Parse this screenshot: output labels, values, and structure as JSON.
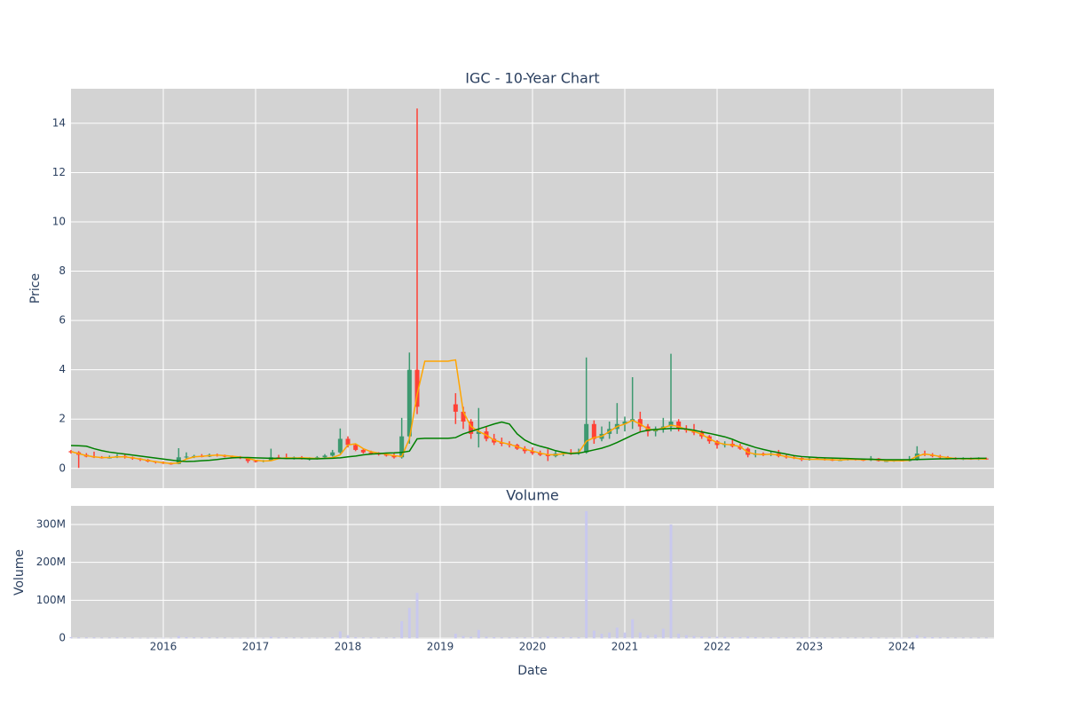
{
  "chart_data": [
    {
      "type": "candlestick",
      "title": "IGC - 10-Year Chart",
      "y_label": "Price",
      "x": [
        "2015-01",
        "2015-02",
        "2015-03",
        "2015-04",
        "2015-05",
        "2015-06",
        "2015-07",
        "2015-08",
        "2015-09",
        "2015-10",
        "2015-11",
        "2015-12",
        "2016-01",
        "2016-02",
        "2016-03",
        "2016-04",
        "2016-05",
        "2016-06",
        "2016-07",
        "2016-08",
        "2016-09",
        "2016-10",
        "2016-11",
        "2016-12",
        "2017-01",
        "2017-02",
        "2017-03",
        "2017-04",
        "2017-05",
        "2017-06",
        "2017-07",
        "2017-08",
        "2017-09",
        "2017-10",
        "2017-11",
        "2017-12",
        "2018-01",
        "2018-02",
        "2018-03",
        "2018-04",
        "2018-05",
        "2018-06",
        "2018-07",
        "2018-08",
        "2018-09",
        "2018-10",
        "2018-11",
        "2018-12",
        "2019-01",
        "2019-02",
        "2019-03",
        "2019-04",
        "2019-05",
        "2019-06",
        "2019-07",
        "2019-08",
        "2019-09",
        "2019-10",
        "2019-11",
        "2019-12",
        "2020-01",
        "2020-02",
        "2020-03",
        "2020-04",
        "2020-05",
        "2020-06",
        "2020-07",
        "2020-08",
        "2020-09",
        "2020-10",
        "2020-11",
        "2020-12",
        "2021-01",
        "2021-02",
        "2021-03",
        "2021-04",
        "2021-05",
        "2021-06",
        "2021-07",
        "2021-08",
        "2021-09",
        "2021-10",
        "2021-11",
        "2021-12",
        "2022-01",
        "2022-02",
        "2022-03",
        "2022-04",
        "2022-05",
        "2022-06",
        "2022-07",
        "2022-08",
        "2022-09",
        "2022-10",
        "2022-11",
        "2022-12",
        "2023-01",
        "2023-02",
        "2023-03",
        "2023-04",
        "2023-05",
        "2023-06",
        "2023-07",
        "2023-08",
        "2023-09",
        "2023-10",
        "2023-11",
        "2023-12",
        "2024-01",
        "2024-02",
        "2024-03",
        "2024-04",
        "2024-05",
        "2024-06",
        "2024-07",
        "2024-08",
        "2024-09",
        "2024-10",
        "2024-11",
        "2024-12"
      ],
      "open": [
        0.7,
        0.65,
        0.55,
        0.48,
        0.45,
        0.42,
        0.44,
        0.5,
        0.45,
        0.4,
        0.35,
        0.28,
        0.25,
        0.2,
        0.18,
        0.45,
        0.48,
        0.5,
        0.48,
        0.55,
        0.52,
        0.48,
        0.45,
        0.42,
        0.3,
        0.28,
        0.32,
        0.45,
        0.42,
        0.4,
        0.45,
        0.38,
        0.4,
        0.45,
        0.52,
        0.65,
        1.2,
        0.95,
        0.75,
        0.65,
        0.6,
        0.58,
        0.52,
        0.45,
        1.3,
        4.0,
        null,
        null,
        null,
        null,
        2.6,
        2.3,
        1.9,
        1.4,
        1.5,
        1.2,
        1.05,
        1.0,
        0.95,
        0.8,
        0.7,
        0.62,
        0.55,
        0.5,
        0.6,
        0.62,
        0.6,
        0.65,
        1.8,
        1.2,
        1.4,
        1.6,
        1.8,
        1.9,
        2.0,
        1.7,
        1.5,
        1.6,
        1.7,
        1.9,
        1.6,
        1.55,
        1.45,
        1.3,
        1.1,
        0.95,
        1.0,
        0.9,
        0.8,
        0.55,
        0.6,
        0.55,
        0.6,
        0.5,
        0.45,
        0.42,
        0.35,
        0.4,
        0.38,
        0.35,
        0.33,
        0.34,
        0.38,
        0.35,
        0.33,
        0.4,
        0.3,
        0.3,
        0.32,
        0.3,
        0.35,
        0.6,
        0.55,
        0.5,
        0.45,
        0.4,
        0.38,
        0.4,
        0.38,
        0.4
      ],
      "high": [
        0.75,
        0.7,
        0.62,
        0.68,
        0.5,
        0.52,
        0.58,
        0.55,
        0.48,
        0.42,
        0.38,
        0.3,
        0.28,
        0.24,
        0.82,
        0.65,
        0.55,
        0.58,
        0.6,
        0.6,
        0.56,
        0.52,
        0.5,
        0.45,
        0.35,
        0.34,
        0.8,
        0.55,
        0.6,
        0.48,
        0.5,
        0.45,
        0.5,
        0.58,
        0.75,
        1.62,
        1.3,
        1.0,
        0.8,
        0.72,
        0.66,
        0.62,
        0.6,
        2.05,
        4.7,
        14.6,
        null,
        null,
        null,
        null,
        3.05,
        2.5,
        2.0,
        2.45,
        1.7,
        1.4,
        1.25,
        1.1,
        1.0,
        0.9,
        0.85,
        0.72,
        0.78,
        0.7,
        0.68,
        0.78,
        0.8,
        4.5,
        1.95,
        1.7,
        1.9,
        2.65,
        2.1,
        3.7,
        2.3,
        1.8,
        1.7,
        2.05,
        4.65,
        2.0,
        1.75,
        1.8,
        1.55,
        1.35,
        1.15,
        1.1,
        1.15,
        1.0,
        0.85,
        0.75,
        0.65,
        0.7,
        0.75,
        0.55,
        0.5,
        0.45,
        0.45,
        0.45,
        0.42,
        0.4,
        0.38,
        0.42,
        0.4,
        0.38,
        0.5,
        0.42,
        0.35,
        0.34,
        0.35,
        0.5,
        0.9,
        0.72,
        0.62,
        0.55,
        0.5,
        0.45,
        0.45,
        0.44,
        0.45,
        0.44
      ],
      "low": [
        0.6,
        0.02,
        0.45,
        0.42,
        0.4,
        0.4,
        0.42,
        0.4,
        0.35,
        0.3,
        0.25,
        0.2,
        0.18,
        0.15,
        0.17,
        0.38,
        0.42,
        0.45,
        0.46,
        0.48,
        0.45,
        0.42,
        0.38,
        0.22,
        0.24,
        0.25,
        0.3,
        0.4,
        0.38,
        0.36,
        0.36,
        0.32,
        0.36,
        0.42,
        0.48,
        0.6,
        0.85,
        0.7,
        0.6,
        0.55,
        0.52,
        0.48,
        0.4,
        0.4,
        1.0,
        2.2,
        null,
        null,
        null,
        null,
        1.8,
        1.6,
        1.2,
        0.85,
        1.1,
        0.95,
        0.9,
        0.85,
        0.75,
        0.6,
        0.55,
        0.5,
        0.3,
        0.45,
        0.5,
        0.55,
        0.55,
        0.6,
        1.0,
        1.1,
        1.2,
        1.4,
        1.5,
        1.6,
        1.5,
        1.3,
        1.3,
        1.45,
        1.5,
        1.5,
        1.45,
        1.35,
        1.2,
        1.0,
        0.8,
        0.85,
        0.85,
        0.75,
        0.45,
        0.45,
        0.5,
        0.5,
        0.45,
        0.4,
        0.38,
        0.3,
        0.32,
        0.35,
        0.32,
        0.3,
        0.3,
        0.32,
        0.32,
        0.3,
        0.3,
        0.28,
        0.26,
        0.27,
        0.28,
        0.28,
        0.32,
        0.5,
        0.45,
        0.4,
        0.38,
        0.35,
        0.34,
        0.35,
        0.34,
        0.35
      ],
      "close": [
        0.65,
        0.55,
        0.48,
        0.45,
        0.42,
        0.44,
        0.5,
        0.45,
        0.4,
        0.35,
        0.28,
        0.25,
        0.2,
        0.18,
        0.45,
        0.48,
        0.5,
        0.48,
        0.55,
        0.52,
        0.48,
        0.45,
        0.42,
        0.3,
        0.28,
        0.32,
        0.45,
        0.42,
        0.4,
        0.45,
        0.38,
        0.4,
        0.45,
        0.52,
        0.65,
        1.2,
        0.95,
        0.75,
        0.65,
        0.6,
        0.58,
        0.52,
        0.45,
        1.3,
        4.0,
        2.5,
        null,
        null,
        null,
        null,
        2.3,
        1.9,
        1.4,
        1.5,
        1.2,
        1.05,
        1.0,
        0.95,
        0.8,
        0.7,
        0.62,
        0.55,
        0.5,
        0.6,
        0.62,
        0.6,
        0.65,
        1.8,
        1.2,
        1.4,
        1.6,
        1.8,
        1.9,
        2.0,
        1.7,
        1.5,
        1.6,
        1.7,
        1.9,
        1.6,
        1.55,
        1.45,
        1.3,
        1.1,
        0.95,
        1.0,
        0.9,
        0.8,
        0.55,
        0.6,
        0.55,
        0.6,
        0.5,
        0.45,
        0.42,
        0.35,
        0.4,
        0.38,
        0.35,
        0.33,
        0.34,
        0.38,
        0.35,
        0.33,
        0.4,
        0.3,
        0.3,
        0.32,
        0.3,
        0.35,
        0.6,
        0.55,
        0.5,
        0.45,
        0.4,
        0.38,
        0.4,
        0.38,
        0.4,
        0.38
      ],
      "increasing_color": "#3d9970",
      "decreasing_color": "#ff4136",
      "series": [
        {
          "color": "#ffa500",
          "values": [
            0.68,
            0.6,
            0.52,
            0.47,
            0.44,
            0.44,
            0.47,
            0.47,
            0.43,
            0.38,
            0.32,
            0.27,
            0.23,
            0.2,
            0.22,
            0.38,
            0.47,
            0.49,
            0.52,
            0.54,
            0.52,
            0.49,
            0.46,
            0.4,
            0.33,
            0.3,
            0.31,
            0.4,
            0.43,
            0.42,
            0.43,
            0.42,
            0.4,
            0.41,
            0.44,
            0.55,
            0.95,
            1.0,
            0.8,
            0.68,
            0.62,
            0.57,
            0.52,
            0.48,
            1.2,
            3.0,
            4.35,
            4.35,
            4.35,
            4.35,
            4.4,
            2.3,
            1.7,
            1.5,
            1.35,
            1.15,
            1.05,
            0.98,
            0.88,
            0.78,
            0.7,
            0.62,
            0.56,
            0.55,
            0.6,
            0.62,
            0.64,
            1.1,
            1.25,
            1.3,
            1.5,
            1.7,
            1.8,
            1.95,
            1.8,
            1.6,
            1.55,
            1.65,
            1.75,
            1.7,
            1.58,
            1.5,
            1.38,
            1.2,
            1.05,
            0.98,
            0.95,
            0.88,
            0.65,
            0.58,
            0.56,
            0.58,
            0.54,
            0.48,
            0.43,
            0.38,
            0.37,
            0.37,
            0.36,
            0.35,
            0.34,
            0.36,
            0.36,
            0.35,
            0.37,
            0.34,
            0.31,
            0.31,
            0.31,
            0.33,
            0.5,
            0.58,
            0.54,
            0.48,
            0.44,
            0.4,
            0.39,
            0.39,
            0.39,
            0.38
          ]
        },
        {
          "color": "#008000",
          "values": [
            0.93,
            0.92,
            0.9,
            0.8,
            0.72,
            0.66,
            0.62,
            0.58,
            0.54,
            0.5,
            0.46,
            0.42,
            0.38,
            0.34,
            0.3,
            0.28,
            0.29,
            0.31,
            0.33,
            0.36,
            0.4,
            0.43,
            0.44,
            0.44,
            0.43,
            0.42,
            0.41,
            0.41,
            0.4,
            0.4,
            0.4,
            0.39,
            0.39,
            0.4,
            0.41,
            0.43,
            0.47,
            0.5,
            0.55,
            0.58,
            0.6,
            0.62,
            0.63,
            0.65,
            0.7,
            1.2,
            1.22,
            1.22,
            1.22,
            1.22,
            1.25,
            1.4,
            1.5,
            1.6,
            1.7,
            1.8,
            1.88,
            1.8,
            1.4,
            1.15,
            1.0,
            0.9,
            0.82,
            0.72,
            0.65,
            0.6,
            0.62,
            0.68,
            0.75,
            0.82,
            0.92,
            1.05,
            1.2,
            1.35,
            1.48,
            1.55,
            1.58,
            1.6,
            1.62,
            1.62,
            1.6,
            1.55,
            1.48,
            1.42,
            1.35,
            1.28,
            1.18,
            1.05,
            0.95,
            0.85,
            0.77,
            0.7,
            0.64,
            0.58,
            0.52,
            0.48,
            0.46,
            0.44,
            0.43,
            0.42,
            0.41,
            0.4,
            0.39,
            0.38,
            0.37,
            0.36,
            0.35,
            0.35,
            0.35,
            0.35,
            0.36,
            0.37,
            0.38,
            0.39,
            0.39,
            0.4,
            0.4,
            0.4,
            0.41,
            0.41
          ]
        }
      ],
      "xlim": [
        "2015-01",
        "2025-01"
      ],
      "xticks": [
        "2016-01",
        "2017-01",
        "2018-01",
        "2019-01",
        "2020-01",
        "2021-01",
        "2022-01",
        "2023-01",
        "2024-01"
      ],
      "ylim": [
        -0.8,
        15.4
      ],
      "yticks": [
        0,
        2,
        4,
        6,
        8,
        10,
        12,
        14
      ],
      "grid": true,
      "background": "#d3d3d3"
    },
    {
      "type": "bar",
      "title": "Volume",
      "y_label": "Volume",
      "x_label": "Date",
      "color": "#c8c8ee",
      "x": [
        "2015-01",
        "2015-02",
        "2015-03",
        "2015-04",
        "2015-05",
        "2015-06",
        "2015-07",
        "2015-08",
        "2015-09",
        "2015-10",
        "2015-11",
        "2015-12",
        "2016-01",
        "2016-02",
        "2016-03",
        "2016-04",
        "2016-05",
        "2016-06",
        "2016-07",
        "2016-08",
        "2016-09",
        "2016-10",
        "2016-11",
        "2016-12",
        "2017-01",
        "2017-02",
        "2017-03",
        "2017-04",
        "2017-05",
        "2017-06",
        "2017-07",
        "2017-08",
        "2017-09",
        "2017-10",
        "2017-11",
        "2017-12",
        "2018-01",
        "2018-02",
        "2018-03",
        "2018-04",
        "2018-05",
        "2018-06",
        "2018-07",
        "2018-08",
        "2018-09",
        "2018-10",
        "2018-11",
        "2018-12",
        "2019-01",
        "2019-02",
        "2019-03",
        "2019-04",
        "2019-05",
        "2019-06",
        "2019-07",
        "2019-08",
        "2019-09",
        "2019-10",
        "2019-11",
        "2019-12",
        "2020-01",
        "2020-02",
        "2020-03",
        "2020-04",
        "2020-05",
        "2020-06",
        "2020-07",
        "2020-08",
        "2020-09",
        "2020-10",
        "2020-11",
        "2020-12",
        "2021-01",
        "2021-02",
        "2021-03",
        "2021-04",
        "2021-05",
        "2021-06",
        "2021-07",
        "2021-08",
        "2021-09",
        "2021-10",
        "2021-11",
        "2021-12",
        "2022-01",
        "2022-02",
        "2022-03",
        "2022-04",
        "2022-05",
        "2022-06",
        "2022-07",
        "2022-08",
        "2022-09",
        "2022-10",
        "2022-11",
        "2022-12",
        "2023-01",
        "2023-02",
        "2023-03",
        "2023-04",
        "2023-05",
        "2023-06",
        "2023-07",
        "2023-08",
        "2023-09",
        "2023-10",
        "2023-11",
        "2023-12",
        "2024-01",
        "2024-02",
        "2024-03",
        "2024-04",
        "2024-05",
        "2024-06",
        "2024-07",
        "2024-08",
        "2024-09",
        "2024-10",
        "2024-11",
        "2024-12"
      ],
      "values": [
        3000000,
        2000000,
        2000000,
        2000000,
        1500000,
        1500000,
        2000000,
        1500000,
        1500000,
        1000000,
        1000000,
        1000000,
        1000000,
        1000000,
        6000000,
        3000000,
        2000000,
        2000000,
        2000000,
        1500000,
        1500000,
        1000000,
        1000000,
        1000000,
        1000000,
        1000000,
        4000000,
        2000000,
        2000000,
        1500000,
        1500000,
        1000000,
        1000000,
        1500000,
        3000000,
        18000000,
        8000000,
        3000000,
        2000000,
        2000000,
        1500000,
        1500000,
        2000000,
        45000000,
        80000000,
        120000000,
        null,
        null,
        null,
        null,
        12000000,
        6000000,
        4000000,
        22000000,
        4000000,
        3000000,
        2000000,
        2000000,
        2000000,
        2000000,
        2000000,
        2000000,
        5000000,
        3000000,
        3000000,
        3000000,
        3000000,
        335000000,
        20000000,
        12000000,
        15000000,
        28000000,
        15000000,
        50000000,
        15000000,
        8000000,
        10000000,
        25000000,
        300000000,
        12000000,
        8000000,
        6000000,
        5000000,
        4000000,
        4000000,
        4000000,
        3000000,
        3000000,
        5000000,
        3000000,
        2000000,
        2000000,
        3000000,
        2000000,
        2000000,
        2000000,
        2000000,
        2000000,
        1500000,
        1500000,
        1500000,
        1500000,
        1500000,
        1500000,
        2000000,
        1500000,
        1000000,
        1000000,
        1000000,
        2000000,
        8000000,
        4000000,
        3000000,
        2000000,
        2000000,
        1500000,
        1500000,
        1500000,
        1500000,
        1500000
      ],
      "xlim": [
        "2015-01",
        "2025-01"
      ],
      "xticks": [
        {
          "value": "2016-01",
          "label": "2016"
        },
        {
          "value": "2017-01",
          "label": "2017"
        },
        {
          "value": "2018-01",
          "label": "2018"
        },
        {
          "value": "2019-01",
          "label": "2019"
        },
        {
          "value": "2020-01",
          "label": "2020"
        },
        {
          "value": "2021-01",
          "label": "2021"
        },
        {
          "value": "2022-01",
          "label": "2022"
        },
        {
          "value": "2023-01",
          "label": "2023"
        },
        {
          "value": "2024-01",
          "label": "2024"
        }
      ],
      "ylim": [
        -2000000,
        349000000
      ],
      "yticks": [
        0,
        {
          "value": 100000000,
          "label": "100M"
        },
        {
          "value": 200000000,
          "label": "200M"
        },
        {
          "value": 300000000,
          "label": "300M"
        }
      ],
      "grid": true,
      "background": "#d3d3d3"
    }
  ]
}
